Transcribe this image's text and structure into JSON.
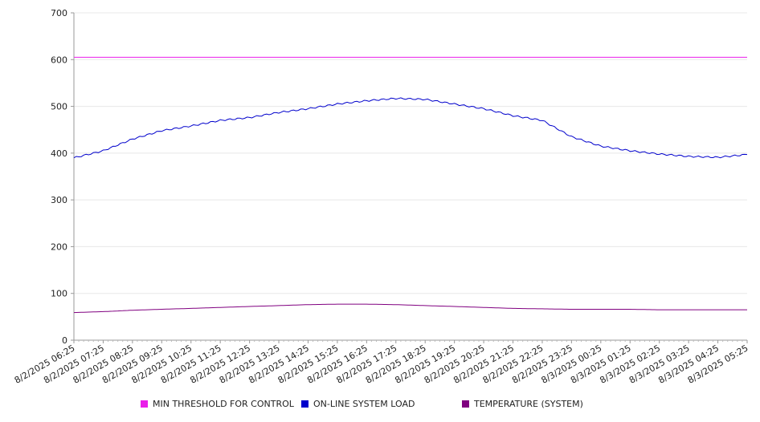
{
  "chart_data": {
    "type": "line",
    "ylim": [
      0,
      700
    ],
    "yticks": [
      "0",
      "100",
      "200",
      "300",
      "400",
      "500",
      "600",
      "700"
    ],
    "grid": true,
    "legend_position": "bottom",
    "x_tick_labels": [
      "8/2/2025 06:25",
      "8/2/2025 07:25",
      "8/2/2025 08:25",
      "8/2/2025 09:25",
      "8/2/2025 10:25",
      "8/2/2025 11:25",
      "8/2/2025 12:25",
      "8/2/2025 13:25",
      "8/2/2025 14:25",
      "8/2/2025 15:25",
      "8/2/2025 16:25",
      "8/2/2025 17:25",
      "8/2/2025 18:25",
      "8/2/2025 19:25",
      "8/2/2025 20:25",
      "8/2/2025 21:25",
      "8/2/2025 22:25",
      "8/2/2025 23:25",
      "8/3/2025 00:25",
      "8/3/2025 01:25",
      "8/3/2025 02:25",
      "8/3/2025 03:25",
      "8/3/2025 04:25",
      "8/3/2025 05:25"
    ],
    "series": [
      {
        "name": "MIN THRESHOLD FOR CONTROL",
        "color": "#e91ee9",
        "x": [
          "8/2/2025 06:25",
          "8/3/2025 05:25"
        ],
        "values": [
          605,
          605
        ]
      },
      {
        "name": "ON-LINE SYSTEM LOAD",
        "color": "#0000cc",
        "x": [
          "8/2/2025 06:25",
          "8/2/2025 07:25",
          "8/2/2025 08:25",
          "8/2/2025 09:25",
          "8/2/2025 10:25",
          "8/2/2025 11:25",
          "8/2/2025 12:25",
          "8/2/2025 13:25",
          "8/2/2025 14:25",
          "8/2/2025 15:25",
          "8/2/2025 16:25",
          "8/2/2025 17:25",
          "8/2/2025 18:25",
          "8/2/2025 19:25",
          "8/2/2025 20:25",
          "8/2/2025 21:25",
          "8/2/2025 22:25",
          "8/2/2025 23:25",
          "8/3/2025 00:25",
          "8/3/2025 01:25",
          "8/3/2025 02:25",
          "8/3/2025 03:25",
          "8/3/2025 04:25",
          "8/3/2025 05:25"
        ],
        "values": [
          390,
          405,
          430,
          448,
          458,
          470,
          476,
          487,
          495,
          505,
          512,
          517,
          515,
          505,
          495,
          480,
          470,
          435,
          415,
          405,
          398,
          393,
          391,
          397
        ]
      },
      {
        "name": "TEMPERATURE (SYSTEM)",
        "color": "#800080",
        "x": [
          "8/2/2025 06:25",
          "8/2/2025 07:25",
          "8/2/2025 08:25",
          "8/2/2025 09:25",
          "8/2/2025 10:25",
          "8/2/2025 11:25",
          "8/2/2025 12:25",
          "8/2/2025 13:25",
          "8/2/2025 14:25",
          "8/2/2025 15:25",
          "8/2/2025 16:25",
          "8/2/2025 17:25",
          "8/2/2025 18:25",
          "8/2/2025 19:25",
          "8/2/2025 20:25",
          "8/2/2025 21:25",
          "8/2/2025 22:25",
          "8/2/2025 23:25",
          "8/3/2025 00:25",
          "8/3/2025 01:25",
          "8/3/2025 02:25",
          "8/3/2025 03:25",
          "8/3/2025 04:25",
          "8/3/2025 05:25"
        ],
        "values": [
          59,
          61,
          64,
          66,
          68,
          70,
          72,
          74,
          76,
          77,
          77,
          76,
          74,
          72,
          70,
          68,
          67,
          66,
          66,
          66,
          65,
          65,
          65,
          65
        ]
      }
    ]
  }
}
